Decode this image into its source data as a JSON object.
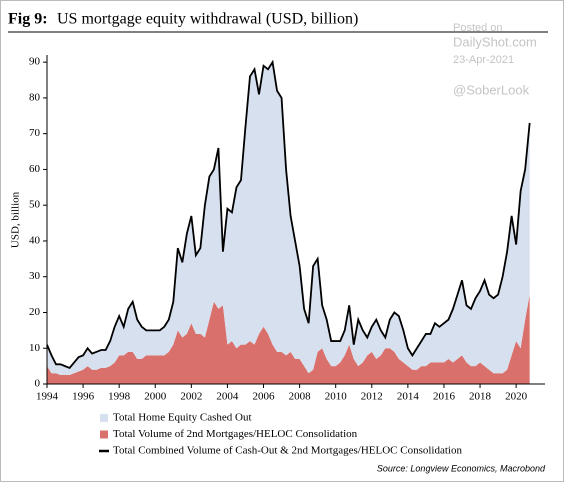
{
  "chart_data": {
    "type": "area",
    "stacked": true,
    "title_label": "Fig 9:",
    "title": "US mortgage equity withdrawal (USD, billion)",
    "watermark": [
      "Posted on",
      "DailyShot.com",
      "23-Apr-2021",
      "@SoberLook"
    ],
    "y_label": "USD, billion",
    "source": "Source: Longview Economics, Macrobond",
    "xlim": [
      1994,
      2021.6
    ],
    "xticks": [
      1994,
      1996,
      1998,
      2000,
      2002,
      2004,
      2006,
      2008,
      2010,
      2012,
      2014,
      2016,
      2018,
      2020
    ],
    "ylim": [
      0,
      92
    ],
    "yticks": [
      0,
      10,
      20,
      30,
      40,
      50,
      60,
      70,
      80,
      90
    ],
    "x": [
      1994,
      1994.25,
      1994.5,
      1994.75,
      1995,
      1995.25,
      1995.5,
      1995.75,
      1996,
      1996.25,
      1996.5,
      1996.75,
      1997,
      1997.25,
      1997.5,
      1997.75,
      1998,
      1998.25,
      1998.5,
      1998.75,
      1999,
      1999.25,
      1999.5,
      1999.75,
      2000,
      2000.25,
      2000.5,
      2000.75,
      2001,
      2001.25,
      2001.5,
      2001.75,
      2002,
      2002.25,
      2002.5,
      2002.75,
      2003,
      2003.25,
      2003.5,
      2003.75,
      2004,
      2004.25,
      2004.5,
      2004.75,
      2005,
      2005.25,
      2005.5,
      2005.75,
      2006,
      2006.25,
      2006.5,
      2006.75,
      2007,
      2007.25,
      2007.5,
      2007.75,
      2008,
      2008.25,
      2008.5,
      2008.75,
      2009,
      2009.25,
      2009.5,
      2009.75,
      2010,
      2010.25,
      2010.5,
      2010.75,
      2011,
      2011.25,
      2011.5,
      2011.75,
      2012,
      2012.25,
      2012.5,
      2012.75,
      2013,
      2013.25,
      2013.5,
      2013.75,
      2014,
      2014.25,
      2014.5,
      2014.75,
      2015,
      2015.25,
      2015.5,
      2015.75,
      2016,
      2016.25,
      2016.5,
      2016.75,
      2017,
      2017.25,
      2017.5,
      2017.75,
      2018,
      2018.25,
      2018.5,
      2018.75,
      2019,
      2019.25,
      2019.5,
      2019.75,
      2020,
      2020.25,
      2020.5,
      2020.75
    ],
    "series": [
      {
        "name": "Total Volume of 2nd Mortgages/HELOC Consolidation",
        "kind": "area",
        "color": "#d9706b",
        "values": [
          5,
          3,
          3,
          2.5,
          2.5,
          2.5,
          3,
          3.5,
          4,
          5,
          4,
          4,
          4.5,
          4.5,
          5,
          6,
          8,
          8,
          9,
          9,
          7,
          7,
          8,
          8,
          8,
          8,
          8,
          9,
          11,
          15,
          13,
          14,
          17,
          14,
          14,
          13,
          18,
          23,
          21,
          22,
          11,
          12,
          10,
          11,
          11,
          12,
          11,
          14,
          16,
          14,
          11,
          9,
          9,
          8,
          9,
          7,
          7,
          5,
          3,
          4,
          9,
          10,
          7,
          5,
          5,
          6,
          8,
          11,
          7,
          5,
          6,
          8,
          9,
          7,
          8,
          10,
          10,
          9,
          7,
          6,
          5,
          4,
          4,
          5,
          5,
          6,
          6,
          6,
          6,
          7,
          6,
          7,
          8,
          6,
          5,
          5,
          6,
          5,
          4,
          3,
          3,
          3,
          4,
          8,
          12,
          10,
          18,
          25
        ]
      },
      {
        "name": "Total Home Equity Cashed Out",
        "kind": "area",
        "color": "#d6e0ee",
        "values": [
          6,
          5,
          2.5,
          3,
          2.5,
          2,
          3,
          4,
          4,
          5,
          4.5,
          5,
          5,
          5,
          7,
          10,
          11,
          8,
          12,
          14,
          11,
          9,
          7,
          7,
          7,
          7,
          8,
          9,
          12,
          23,
          21,
          28,
          30,
          22,
          24,
          37,
          40,
          37,
          45,
          15,
          38,
          36,
          45,
          46,
          61,
          74,
          77,
          67,
          73,
          74,
          79,
          73,
          71,
          52,
          38,
          33,
          26,
          16,
          14,
          29,
          26,
          12,
          11,
          7,
          7,
          6,
          7,
          11,
          4,
          13,
          9,
          5,
          7,
          11,
          7,
          3,
          8,
          11,
          12,
          9,
          5,
          4,
          6,
          7,
          9,
          8,
          11,
          10,
          11,
          11,
          15,
          18,
          21,
          16,
          16,
          19,
          20,
          24,
          21,
          21,
          22,
          27,
          33,
          39,
          27,
          44,
          42,
          48
        ]
      },
      {
        "name": "Total Combined Volume of Cash-Out & 2nd Mortgages/HELOC Consolidation",
        "kind": "line",
        "color": "#000000",
        "values": [
          11,
          8,
          5.5,
          5.5,
          5,
          4.5,
          6,
          7.5,
          8,
          10,
          8.5,
          9,
          9.5,
          9.5,
          12,
          16,
          19,
          16,
          21,
          23,
          18,
          16,
          15,
          15,
          15,
          15,
          16,
          18,
          23,
          38,
          34,
          42,
          47,
          36,
          38,
          50,
          58,
          60,
          66,
          37,
          49,
          48,
          55,
          57,
          72,
          86,
          88,
          81,
          89,
          88,
          90,
          82,
          80,
          60,
          47,
          40,
          33,
          21,
          17,
          33,
          35,
          22,
          18,
          12,
          12,
          12,
          15,
          22,
          11,
          18,
          15,
          13,
          16,
          18,
          15,
          13,
          18,
          20,
          19,
          15,
          10,
          8,
          10,
          12,
          14,
          14,
          17,
          16,
          17,
          18,
          21,
          25,
          29,
          22,
          21,
          24,
          26,
          29,
          25,
          24,
          25,
          30,
          37,
          47,
          39,
          54,
          60,
          73
        ]
      }
    ],
    "legend_order": [
      1,
      0,
      2
    ]
  }
}
